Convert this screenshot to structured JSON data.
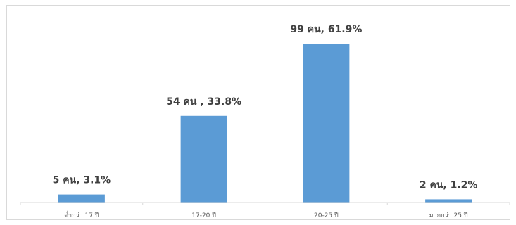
{
  "chart_data": {
    "type": "bar",
    "categories": [
      "ต่ำกว่า 17 ปี",
      "17-20 ปี",
      "20-25 ปี",
      "มากกว่า 25 ปี"
    ],
    "values": [
      5,
      54,
      99,
      2
    ],
    "data_labels": [
      "5 คน, 3.1%",
      "54 คน , 33.8%",
      "99 คน, 61.9%",
      "2 คน, 1.2%"
    ],
    "bar_color": "#5b9bd5",
    "title": "",
    "xlabel": "",
    "ylabel": "",
    "ylim": [
      0,
      110
    ],
    "grid": false,
    "legend": "none"
  }
}
